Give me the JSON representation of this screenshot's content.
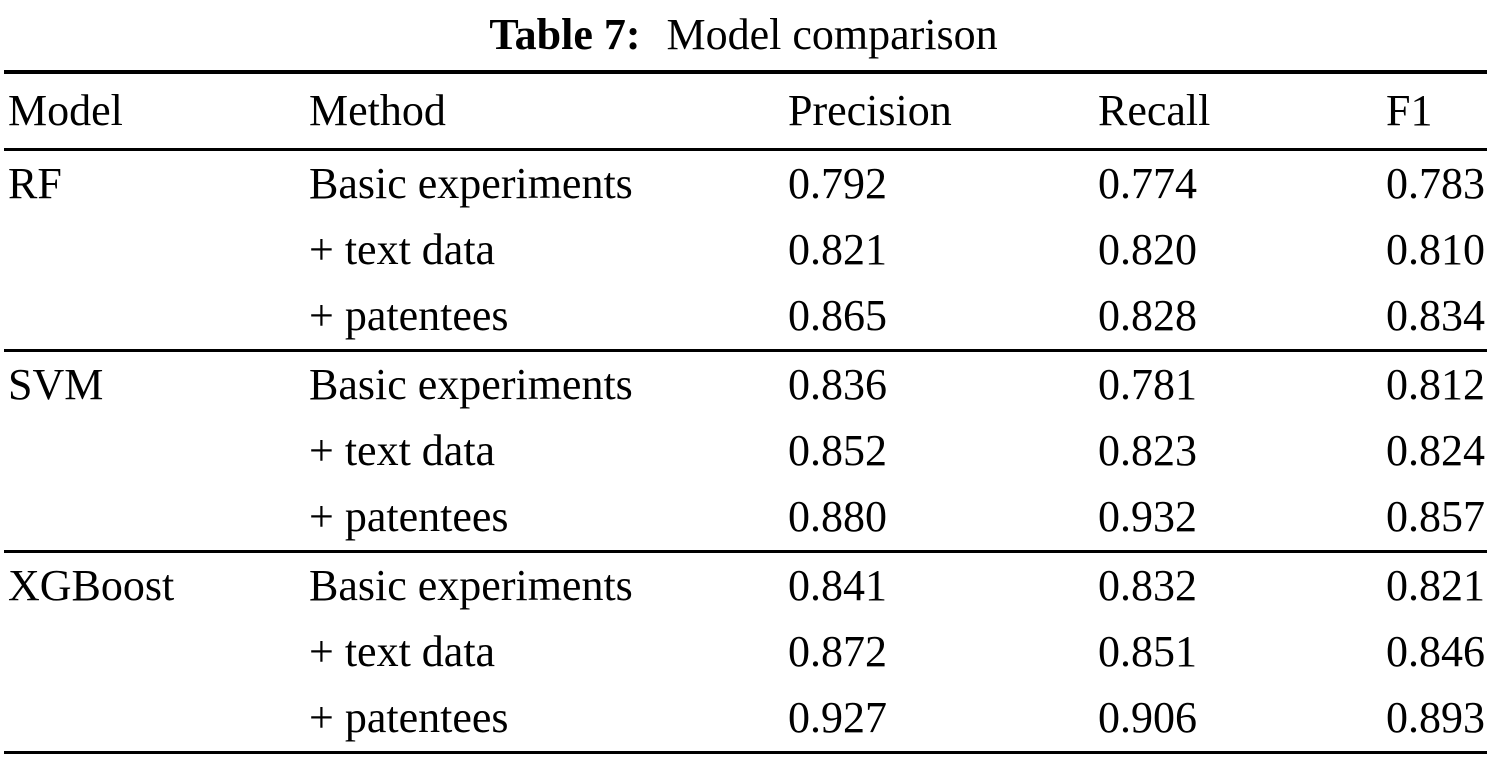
{
  "page": {
    "background": "#ffffff",
    "text_color": "#000000",
    "rule_color": "#000000"
  },
  "caption": {
    "label": "Table 7:",
    "text": "Model comparison"
  },
  "table": {
    "columns": [
      "Model",
      "Method",
      "Precision",
      "Recall",
      "F1"
    ],
    "sections": [
      {
        "model": "RF",
        "rows": [
          {
            "method": "Basic experiments",
            "precision": "0.792",
            "recall": "0.774",
            "f1": "0.783"
          },
          {
            "method": "+ text data",
            "precision": "0.821",
            "recall": "0.820",
            "f1": "0.810"
          },
          {
            "method": "+ patentees",
            "precision": "0.865",
            "recall": "0.828",
            "f1": "0.834"
          }
        ]
      },
      {
        "model": "SVM",
        "rows": [
          {
            "method": "Basic experiments",
            "precision": "0.836",
            "recall": "0.781",
            "f1": "0.812"
          },
          {
            "method": "+ text data",
            "precision": "0.852",
            "recall": "0.823",
            "f1": "0.824"
          },
          {
            "method": "+ patentees",
            "precision": "0.880",
            "recall": "0.932",
            "f1": "0.857"
          }
        ]
      },
      {
        "model": "XGBoost",
        "rows": [
          {
            "method": "Basic experiments",
            "precision": "0.841",
            "recall": "0.832",
            "f1": "0.821"
          },
          {
            "method": "+ text data",
            "precision": "0.872",
            "recall": "0.851",
            "f1": "0.846"
          },
          {
            "method": "+ patentees",
            "precision": "0.927",
            "recall": "0.906",
            "f1": "0.893"
          }
        ]
      }
    ]
  },
  "chart_data": {
    "type": "table",
    "title": "Table 7: Model comparison",
    "columns": [
      "Model",
      "Method",
      "Precision",
      "Recall",
      "F1"
    ],
    "rows": [
      [
        "RF",
        "Basic experiments",
        0.792,
        0.774,
        0.783
      ],
      [
        "RF",
        "+ text data",
        0.821,
        0.82,
        0.81
      ],
      [
        "RF",
        "+ patentees",
        0.865,
        0.828,
        0.834
      ],
      [
        "SVM",
        "Basic experiments",
        0.836,
        0.781,
        0.812
      ],
      [
        "SVM",
        "+ text data",
        0.852,
        0.823,
        0.824
      ],
      [
        "SVM",
        "+ patentees",
        0.88,
        0.932,
        0.857
      ],
      [
        "XGBoost",
        "Basic experiments",
        0.841,
        0.832,
        0.821
      ],
      [
        "XGBoost",
        "+ text data",
        0.872,
        0.851,
        0.846
      ],
      [
        "XGBoost",
        "+ patentees",
        0.927,
        0.906,
        0.893
      ]
    ]
  }
}
